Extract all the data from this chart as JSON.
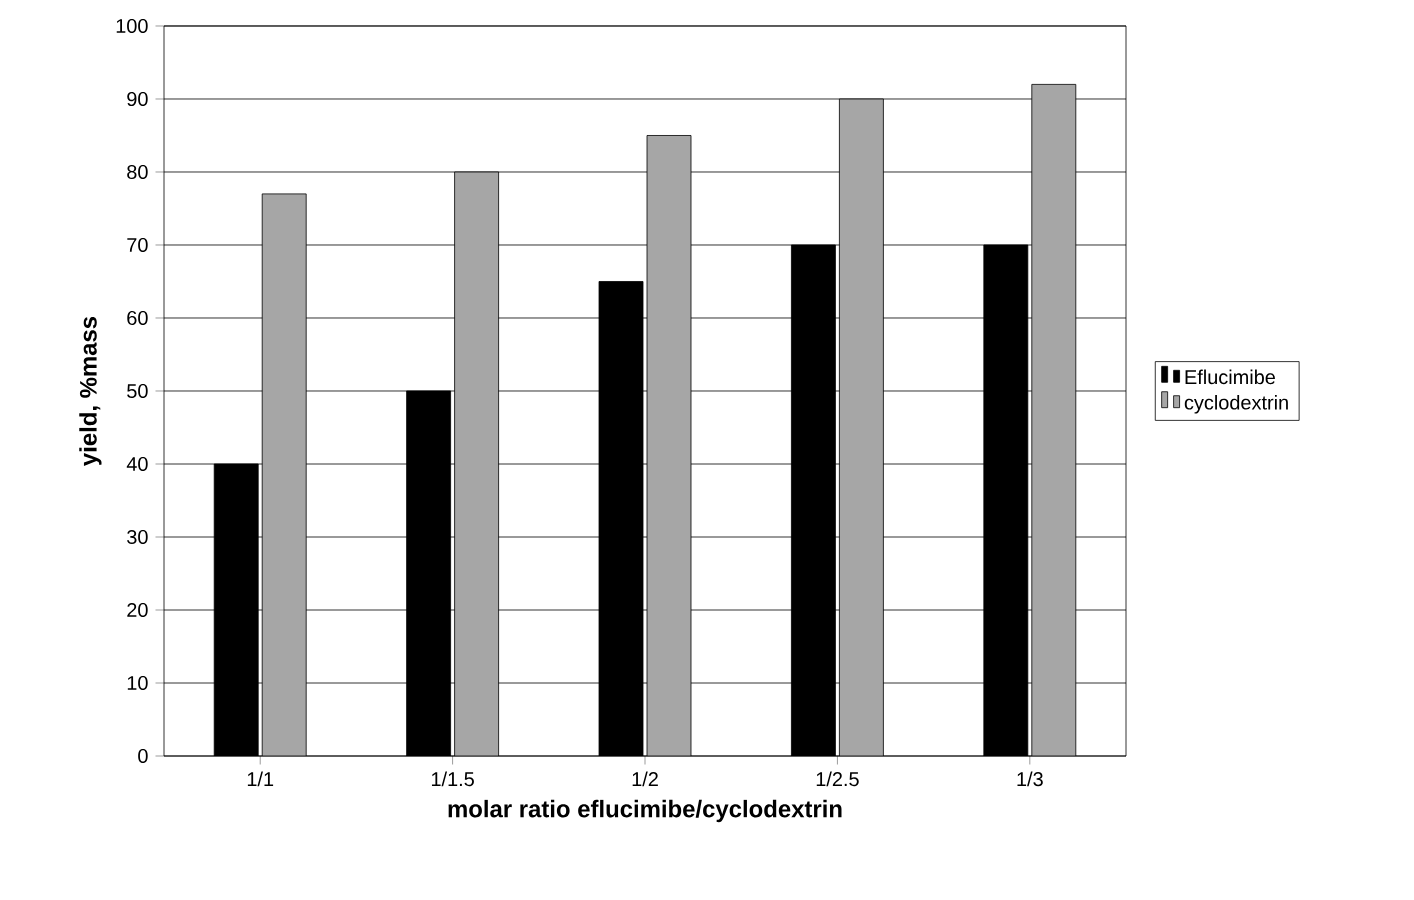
{
  "chart_data": {
    "type": "bar",
    "xlabel": "molar ratio eflucimibe/cyclodextrin",
    "ylabel": "yield, %mass",
    "categories": [
      "1/1",
      "1/1.5",
      "1/2",
      "1/2.5",
      "1/3"
    ],
    "series": [
      {
        "name": "Eflucimibe",
        "color": "#000000",
        "values": [
          40,
          50,
          65,
          70,
          70
        ]
      },
      {
        "name": "cyclodextrin",
        "color": "#a6a6a6",
        "values": [
          77,
          80,
          85,
          90,
          92
        ]
      }
    ],
    "ylim": [
      0,
      100
    ],
    "yticks": [
      0,
      10,
      20,
      30,
      40,
      50,
      60,
      70,
      80,
      90,
      100
    ],
    "grid": "y",
    "legend": "right"
  }
}
